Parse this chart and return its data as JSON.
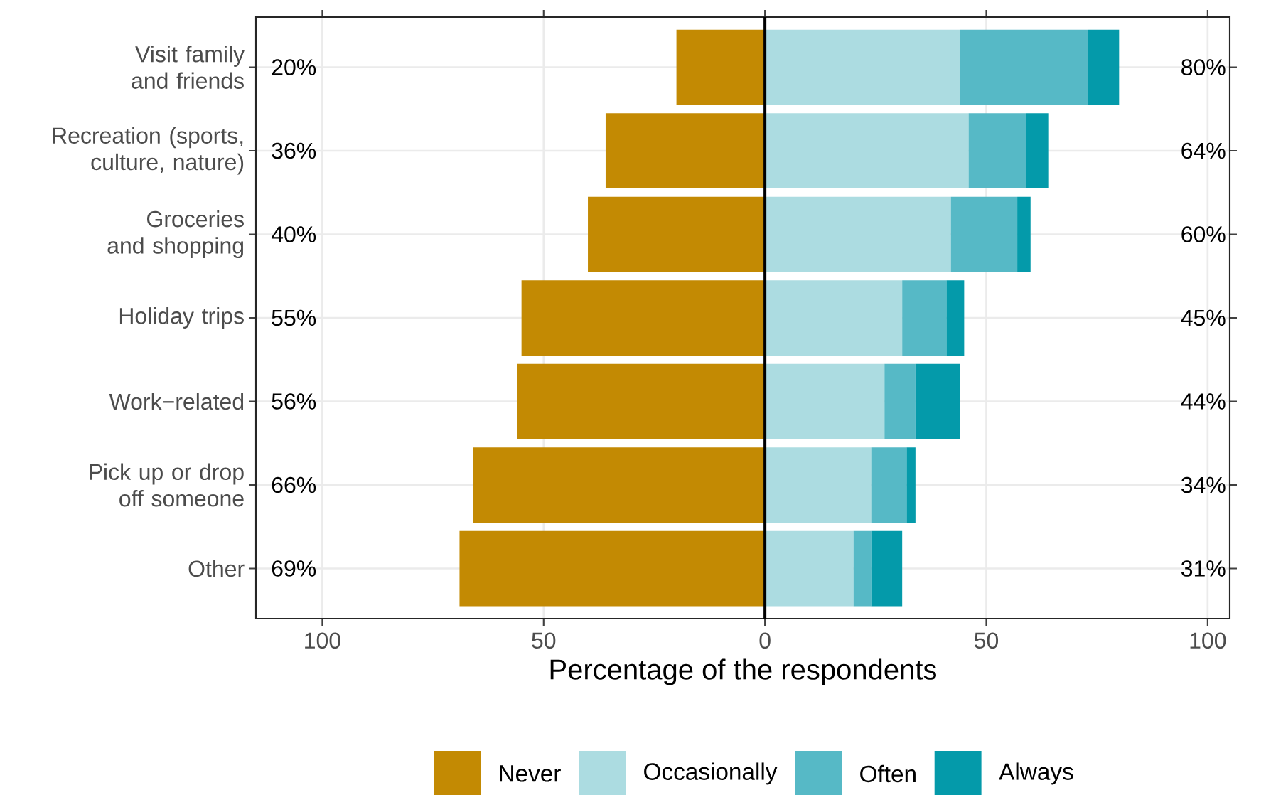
{
  "chart_data": {
    "type": "bar",
    "orientation": "horizontal",
    "stacked": true,
    "xlabel": "Percentage of the respondents",
    "categories": [
      "Visit family and friends",
      "Recreation (sports, culture, nature)",
      "Groceries and shopping",
      "Holiday trips",
      "Work−related",
      "Pick up or drop off someone",
      "Other"
    ],
    "series": [
      {
        "name": "Never",
        "color": "#c38a03",
        "values": [
          -20,
          -36,
          -40,
          -55,
          -56,
          -66,
          -69
        ]
      },
      {
        "name": "Occasionally",
        "color": "#acdce1",
        "values": [
          44,
          46,
          42,
          31,
          27,
          24,
          20
        ]
      },
      {
        "name": "Often",
        "color": "#56b9c6",
        "values": [
          29,
          13,
          15,
          10,
          7,
          8,
          4
        ]
      },
      {
        "name": "Always",
        "color": "#049aaa",
        "values": [
          7,
          5,
          3,
          4,
          10,
          2,
          7
        ]
      }
    ],
    "annotations": [
      "20%",
      "36%",
      "40%",
      "55%",
      "56%",
      "66%",
      "69%",
      "80%",
      "64%",
      "60%",
      "45%",
      "44%",
      "34%",
      "31%"
    ],
    "xlim": [
      -115,
      105
    ],
    "xticks": [
      {
        "value": -100,
        "label": "100"
      },
      {
        "value": -50,
        "label": "50"
      },
      0,
      50,
      100
    ],
    "ref_lines": [
      {
        "axis": "x",
        "value": 0
      }
    ],
    "grid": true,
    "legend": "bottom"
  }
}
